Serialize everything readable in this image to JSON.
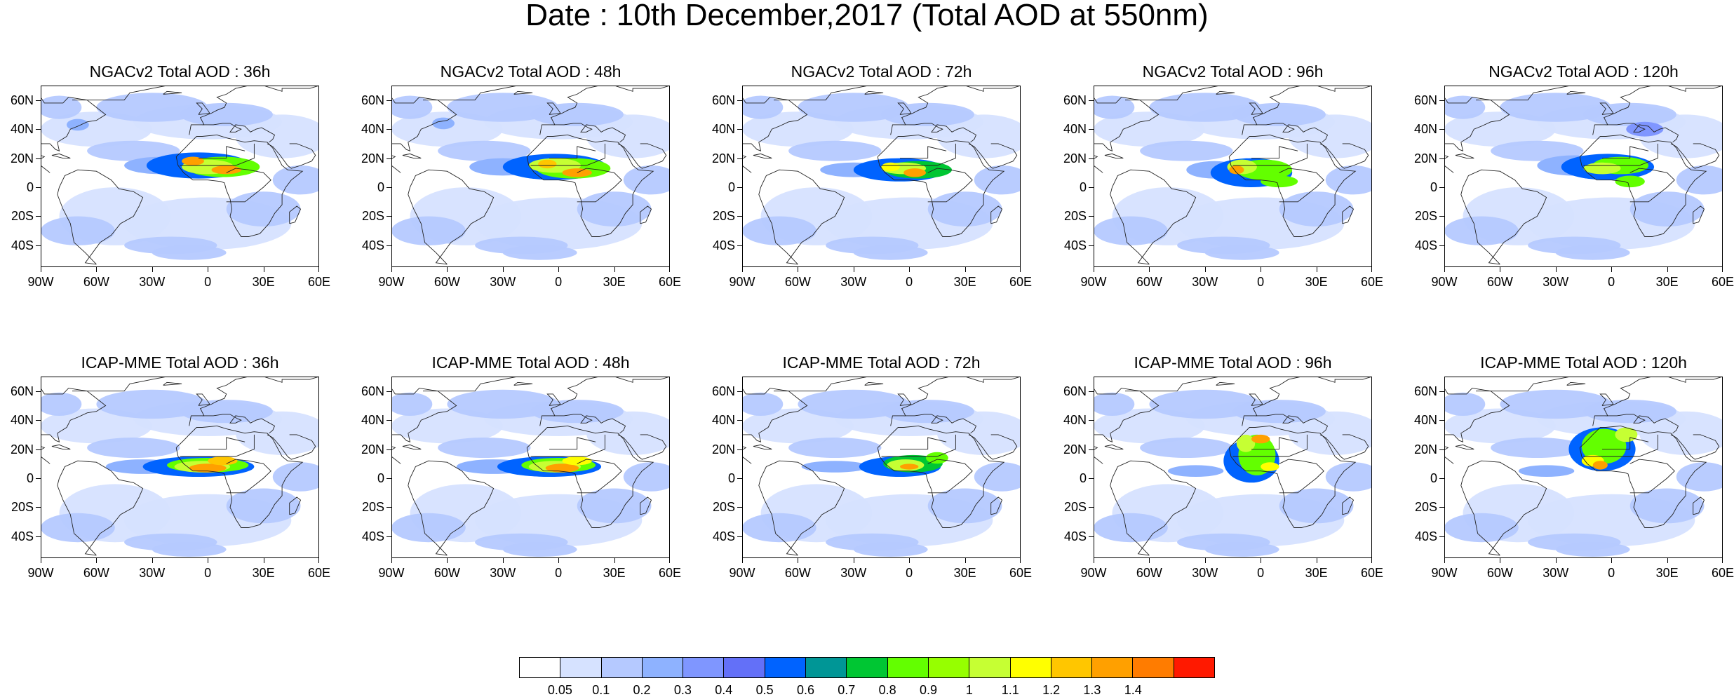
{
  "figure": {
    "title": "Date : 10th December,2017 (Total AOD at 550nm)"
  },
  "axes": {
    "lat_labels": [
      "60N",
      "40N",
      "20N",
      "0",
      "20S",
      "40S"
    ],
    "lon_labels": [
      "90W",
      "60W",
      "30W",
      "0",
      "30E",
      "60E"
    ]
  },
  "panels": [
    {
      "title": "NGACv2 Total AOD : 36h",
      "model": "NGACv2",
      "lead": "36h"
    },
    {
      "title": "NGACv2 Total AOD : 48h",
      "model": "NGACv2",
      "lead": "48h"
    },
    {
      "title": "NGACv2 Total AOD : 72h",
      "model": "NGACv2",
      "lead": "72h"
    },
    {
      "title": "NGACv2 Total AOD : 96h",
      "model": "NGACv2",
      "lead": "96h"
    },
    {
      "title": "NGACv2 Total AOD : 120h",
      "model": "NGACv2",
      "lead": "120h"
    },
    {
      "title": "ICAP-MME Total AOD : 36h",
      "model": "ICAP-MME",
      "lead": "36h"
    },
    {
      "title": "ICAP-MME Total AOD : 48h",
      "model": "ICAP-MME",
      "lead": "48h"
    },
    {
      "title": "ICAP-MME Total AOD : 72h",
      "model": "ICAP-MME",
      "lead": "72h"
    },
    {
      "title": "ICAP-MME Total AOD : 96h",
      "model": "ICAP-MME",
      "lead": "96h"
    },
    {
      "title": "ICAP-MME Total AOD : 120h",
      "model": "ICAP-MME",
      "lead": "120h"
    }
  ],
  "colorbar": {
    "levels": [
      "0.05",
      "0.1",
      "0.2",
      "0.3",
      "0.4",
      "0.5",
      "0.6",
      "0.7",
      "0.8",
      "0.9",
      "1",
      "1.1",
      "1.2",
      "1.3",
      "1.4"
    ],
    "colors": [
      "#ffffff",
      "#d6e2ff",
      "#b5c9ff",
      "#8eb2ff",
      "#7f96ff",
      "#6370f8",
      "#0063ff",
      "#009696",
      "#00c633",
      "#63ff00",
      "#96ff00",
      "#c6ff33",
      "#ffff00",
      "#ffc600",
      "#ffa000",
      "#ff7c00",
      "#ff1900"
    ]
  },
  "map_colors": {
    "ocean": "#ffffff",
    "coast": "#222222"
  }
}
